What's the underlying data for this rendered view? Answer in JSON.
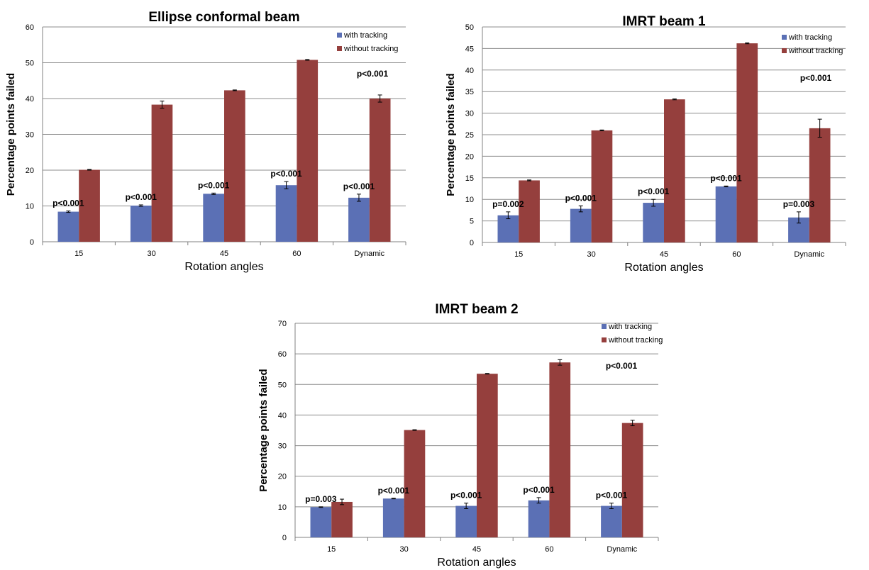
{
  "chart_data": [
    {
      "type": "bar",
      "title": "Ellipse conformal beam",
      "xlabel": "Rotation angles",
      "ylabel": "Percentage points failed",
      "ylim": [
        0,
        60
      ],
      "yticks": [
        0,
        10,
        20,
        30,
        40,
        50,
        60
      ],
      "categories": [
        "15",
        "30",
        "45",
        "60",
        "Dynamic"
      ],
      "series": [
        {
          "name": "with tracking",
          "color": "#5b70b5",
          "values": [
            8.4,
            10.1,
            13.4,
            15.8,
            12.3
          ],
          "errors": [
            0.2,
            0.2,
            0.2,
            1.0,
            1.0
          ]
        },
        {
          "name": "without tracking",
          "color": "#953f3d",
          "values": [
            20.1,
            38.3,
            42.3,
            50.8,
            40.0
          ],
          "errors": [
            0.1,
            1.0,
            0.1,
            0.1,
            1.0
          ]
        }
      ],
      "annotations": [
        "p<0.001",
        "p<0.001",
        "p<0.001",
        "p<0.001",
        "p<0.001"
      ],
      "overall_annotation": "p<0.001",
      "legend": "top-right",
      "grid": true
    },
    {
      "type": "bar",
      "title": "IMRT beam 1",
      "xlabel": "Rotation angles",
      "ylabel": "Percentage points failed",
      "ylim": [
        0,
        50
      ],
      "yticks": [
        0,
        5,
        10,
        15,
        20,
        25,
        30,
        35,
        40,
        45,
        50
      ],
      "categories": [
        "15",
        "30",
        "45",
        "60",
        "Dynamic"
      ],
      "series": [
        {
          "name": "with tracking",
          "color": "#5b70b5",
          "values": [
            6.3,
            7.8,
            9.2,
            13.0,
            5.8
          ],
          "errors": [
            0.8,
            0.7,
            0.8,
            0.1,
            1.3
          ]
        },
        {
          "name": "without tracking",
          "color": "#953f3d",
          "values": [
            14.4,
            26.0,
            33.2,
            46.2,
            26.5
          ],
          "errors": [
            0.1,
            0.1,
            0.1,
            0.1,
            2.1
          ]
        }
      ],
      "annotations": [
        "p=0.002",
        "p<0.001",
        "p<0.001",
        "p<0.001",
        "p=0.003"
      ],
      "overall_annotation": "p<0.001",
      "legend": "top-right",
      "grid": true
    },
    {
      "type": "bar",
      "title": "IMRT beam 2",
      "xlabel": "Rotation angles",
      "ylabel": "Percentage points failed",
      "ylim": [
        0,
        70
      ],
      "yticks": [
        0,
        10,
        20,
        30,
        40,
        50,
        60,
        70
      ],
      "categories": [
        "15",
        "30",
        "45",
        "60",
        "Dynamic"
      ],
      "series": [
        {
          "name": "with tracking",
          "color": "#5b70b5",
          "values": [
            9.9,
            12.7,
            10.3,
            12.1,
            10.3
          ],
          "errors": [
            0.1,
            0.1,
            0.9,
            0.9,
            0.9
          ]
        },
        {
          "name": "without tracking",
          "color": "#953f3d",
          "values": [
            11.6,
            35.1,
            53.5,
            57.2,
            37.4
          ],
          "errors": [
            0.9,
            0.1,
            0.1,
            0.9,
            0.9
          ]
        }
      ],
      "annotations": [
        "p=0.003",
        "p<0.001",
        "p<0.001",
        "p<0.001",
        "p<0.001"
      ],
      "overall_annotation": "p<0.001",
      "legend": "top-right",
      "grid": true
    }
  ]
}
